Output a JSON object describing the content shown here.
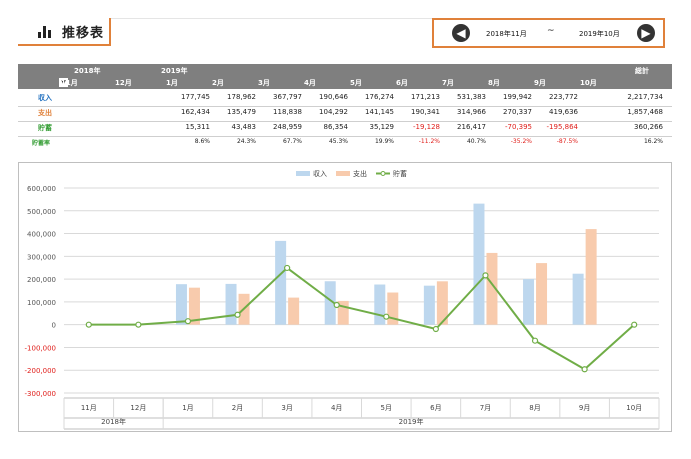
{
  "header": {
    "title": "推移表",
    "range_start": "2018年11月",
    "range_sep": "~",
    "range_end": "2019年10月",
    "prev_label": "◀",
    "next_label": "▶"
  },
  "table": {
    "year_labels": [
      "2018年",
      "2019年"
    ],
    "month_labels": [
      "11月",
      "12月",
      "1月",
      "2月",
      "3月",
      "4月",
      "5月",
      "6月",
      "7月",
      "8月",
      "9月",
      "10月"
    ],
    "total_label": "総計",
    "rows": [
      {
        "label": "収入",
        "color": "#1f6fbf",
        "values": [
          "",
          "",
          "177,745",
          "178,962",
          "367,797",
          "190,646",
          "176,274",
          "171,213",
          "531,383",
          "199,942",
          "223,772",
          ""
        ],
        "total": "2,217,734"
      },
      {
        "label": "支出",
        "color": "#e0813a",
        "values": [
          "",
          "",
          "162,434",
          "135,479",
          "118,838",
          "104,292",
          "141,145",
          "190,341",
          "314,966",
          "270,337",
          "419,636",
          ""
        ],
        "total": "1,857,468"
      },
      {
        "label": "貯蓄",
        "color": "#3aa03a",
        "values": [
          "",
          "",
          "15,311",
          "43,483",
          "248,959",
          "86,354",
          "35,129",
          "-19,128",
          "216,417",
          "-70,395",
          "-195,864",
          ""
        ],
        "total": "360,266"
      },
      {
        "label": "貯蓄率",
        "color": "#3aa03a",
        "values": [
          "",
          "",
          "8.6%",
          "24.3%",
          "67.7%",
          "45.3%",
          "19.9%",
          "-11.2%",
          "40.7%",
          "-35.2%",
          "-87.5%",
          ""
        ],
        "total": "16.2%"
      }
    ]
  },
  "chart_data": {
    "type": "bar",
    "categories": [
      "11月",
      "12月",
      "1月",
      "2月",
      "3月",
      "4月",
      "5月",
      "6月",
      "7月",
      "8月",
      "9月",
      "10月"
    ],
    "group_labels": [
      "2018年",
      "2019年"
    ],
    "series": [
      {
        "name": "収入",
        "kind": "bar",
        "color": "#bdd7ee",
        "values": [
          0,
          0,
          177745,
          178962,
          367797,
          190646,
          176274,
          171213,
          531383,
          199942,
          223772,
          0
        ]
      },
      {
        "name": "支出",
        "kind": "bar",
        "color": "#f8cbad",
        "values": [
          0,
          0,
          162434,
          135479,
          118838,
          104292,
          141145,
          190341,
          314966,
          270337,
          419636,
          0
        ]
      },
      {
        "name": "貯蓄",
        "kind": "line",
        "color": "#70ad47",
        "values": [
          0,
          0,
          15311,
          43483,
          248959,
          86354,
          35129,
          -19128,
          216417,
          -70395,
          -195864,
          0
        ]
      }
    ],
    "ylim": [
      -300000,
      600000
    ],
    "yticks": [
      "600,000",
      "500,000",
      "400,000",
      "300,000",
      "200,000",
      "100,000",
      "0",
      "-100,000",
      "-200,000",
      "-300,000"
    ],
    "legend_position": "top",
    "grid": true
  }
}
